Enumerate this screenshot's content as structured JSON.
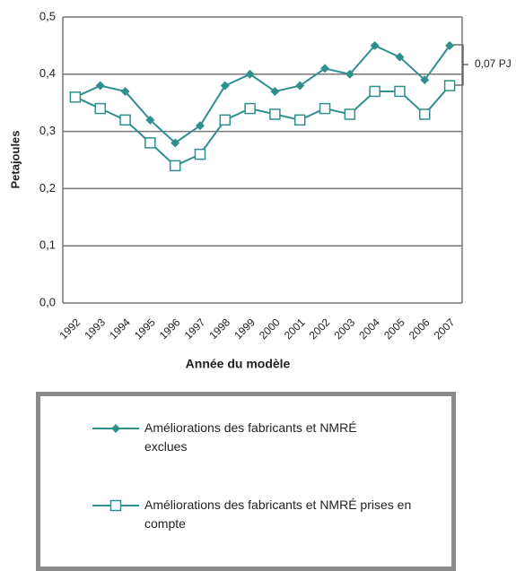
{
  "chart_data": {
    "type": "line",
    "x_label": "Année du modèle",
    "y_label": "Petajoules",
    "annotation": "0,07 PJ",
    "categories": [
      "1992",
      "1993",
      "1994",
      "1995",
      "1996",
      "1997",
      "1998",
      "1999",
      "2000",
      "2001",
      "2002",
      "2003",
      "2004",
      "2005",
      "2006",
      "2007"
    ],
    "series": [
      {
        "name": "Améliorations des fabricants et NMRÉ exclues",
        "color": "#2f8f8f",
        "marker": "diamond",
        "values": [
          0.36,
          0.38,
          0.37,
          0.32,
          0.28,
          0.31,
          0.38,
          0.4,
          0.37,
          0.38,
          0.41,
          0.4,
          0.45,
          0.43,
          0.39,
          0.45
        ]
      },
      {
        "name": "Améliorations des fabricants et NMRÉ prises en compte",
        "color": "#2f8f8f",
        "marker": "square",
        "values": [
          0.36,
          0.34,
          0.32,
          0.28,
          0.24,
          0.26,
          0.32,
          0.34,
          0.33,
          0.32,
          0.34,
          0.33,
          0.37,
          0.37,
          0.33,
          0.38
        ]
      }
    ],
    "ylim": [
      0,
      0.5
    ],
    "yticks": [
      {
        "value": 0,
        "label": "0,0"
      },
      {
        "value": 0.1,
        "label": "0,1"
      },
      {
        "value": 0.2,
        "label": "0,2"
      },
      {
        "value": 0.3,
        "label": "0,3"
      },
      {
        "value": 0.4,
        "label": "0,4"
      },
      {
        "value": 0.5,
        "label": "0,5"
      }
    ],
    "grid": true
  }
}
